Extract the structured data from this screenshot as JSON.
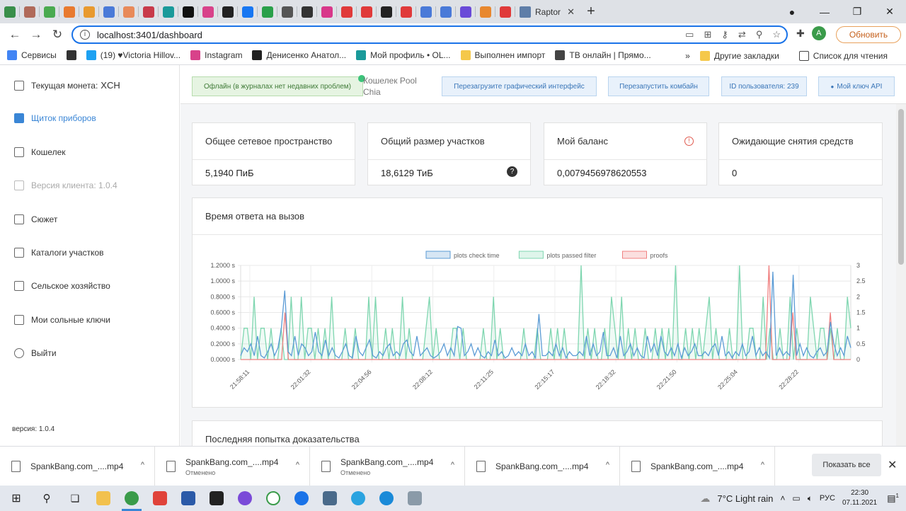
{
  "browser": {
    "tabs_favicon_colors": [
      "#3a8f4a",
      "#b06a5a",
      "#4aaa50",
      "#e87a2f",
      "#e89a2f",
      "#4a7ad8",
      "#e88a5a",
      "#c83a4a",
      "#1a9a9a",
      "#111111",
      "#d8428a",
      "#222222",
      "#1877f2",
      "#2aa04a",
      "#555555",
      "#333333",
      "#d8388a",
      "#e03a3a",
      "#e03a3a",
      "#222222",
      "#e03a3a",
      "#4a7ad8",
      "#4a7ad8",
      "#6a4ad8",
      "#e8882f",
      "#e03a3a"
    ],
    "active_tab_title": "Raptor",
    "url": "localhost:3401/dashboard",
    "update_label": "Обновить",
    "profile_initial": "А",
    "bookmarks": [
      {
        "label": "Сервисы",
        "color": "#4285f4"
      },
      {
        "label": "",
        "color": "#333333"
      },
      {
        "label": "(19) ♥Victoria Hillov...",
        "color": "#1da1f2"
      },
      {
        "label": "Instagram",
        "color": "#d8428a"
      },
      {
        "label": "Денисенко Анатол...",
        "color": "#222222"
      },
      {
        "label": "Мой профиль • OL...",
        "color": "#1a9a9a"
      },
      {
        "label": "Выполнен импорт",
        "color": "#f5c84a"
      },
      {
        "label": "ТВ онлайн | Прямо...",
        "color": "#444444"
      }
    ],
    "bookmarks_more": "»",
    "bookmarks_other": "Другие закладки",
    "reading_list": "Список для чтения"
  },
  "sidebar": {
    "items": [
      {
        "label": "Текущая монета:",
        "value": "XCH"
      },
      {
        "label": "Щиток приборов"
      },
      {
        "label": "Кошелек"
      },
      {
        "label": "Версия клиента: 1.0.4"
      },
      {
        "label": "Сюжет"
      },
      {
        "label": "Каталоги участков"
      },
      {
        "label": "Сельское хозяйство"
      },
      {
        "label": "Мои сольные ключи"
      },
      {
        "label": "Выйти"
      }
    ],
    "version": "версия: 1.0.4"
  },
  "topbar": {
    "status": "Офлайн (в журналах нет недавних проблем)",
    "pool_line1": "Кошелек Pool",
    "pool_line2": "Chia",
    "reload_gui": "Перезагрузите графический интерфейс",
    "restart_harvester": "Перезапустить комбайн",
    "user_id": "ID пользователя: 239",
    "api_key": "Мой ключ API"
  },
  "stats": [
    {
      "title": "Общее сетевое пространство",
      "value": "5,1940 ПиБ"
    },
    {
      "title": "Общий размер участков",
      "value": "18,6129 ТиБ"
    },
    {
      "title": "Мой баланс",
      "value": "0,0079456978620553"
    },
    {
      "title": "Ожидающие снятия средств",
      "value": "0"
    }
  ],
  "chart_card_title": "Время ответа на вызов",
  "next_card_title": "Последняя попытка доказательства",
  "chart_data": {
    "type": "line",
    "legend_position": "top",
    "series": [
      {
        "name": "plots check time",
        "color": "#5b9bd5",
        "axis": "left"
      },
      {
        "name": "plots passed filter",
        "color": "#7fd6b0",
        "axis": "right"
      },
      {
        "name": "proofs",
        "color": "#f08080",
        "axis": "right"
      }
    ],
    "y_left_ticks": [
      "1.2000 s",
      "1.0000 s",
      "0.8000 s",
      "0.6000 s",
      "0.4000 s",
      "0.2000 s",
      "0.0000 s"
    ],
    "y_left_range": [
      0,
      1.2
    ],
    "y_right_ticks": [
      "3",
      "2.5",
      "2",
      "1.5",
      "1",
      "0.5",
      "0"
    ],
    "y_right_range": [
      0,
      3
    ],
    "x_ticks": [
      "21:58:11",
      "22:01:32",
      "22:04:56",
      "22:08:12",
      "22:11:25",
      "22:15:17",
      "22:18:32",
      "22:21:50",
      "22:25:04",
      "22:28:22"
    ],
    "plots_check_time": [
      0.05,
      0.15,
      0.1,
      0.2,
      0.05,
      0.3,
      0.05,
      0.02,
      0.1,
      0.2,
      0.05,
      0.15,
      0.4,
      0.88,
      0.1,
      0.05,
      0.3,
      0.05,
      0.2,
      0.15,
      0.05,
      0.1,
      0.35,
      0.1,
      0.05,
      0.25,
      0.05,
      0.15,
      0.05,
      0.02,
      0.1,
      0.2,
      0.05,
      0.02,
      0.3,
      0.1,
      0.05,
      0.15,
      0.25,
      0.05,
      0.02,
      0.1,
      0.05,
      0.15,
      0.2,
      0.05,
      0.1,
      0.05,
      0.2,
      0.25,
      0.1,
      0.05,
      0.3,
      0.05,
      0.1,
      0.15,
      0.05,
      0.02,
      0.05,
      0.1,
      0.2,
      0.05,
      0.15,
      0.05,
      0.42,
      0.4,
      0.05,
      0.1,
      0.2,
      0.05,
      0.15,
      0.05,
      0.02,
      0.1,
      0.05,
      0.25,
      0.05,
      0.1,
      0.02,
      0.05,
      0.15,
      0.05,
      0.1,
      0.05,
      0.2,
      0.05,
      0.1,
      0.02,
      0.58,
      0.05,
      0.05,
      0.1,
      0.05,
      0.2,
      0.05,
      0.15,
      0.02,
      0.1,
      0.05,
      0.05,
      0.1,
      0.05,
      0.3,
      0.05,
      0.2,
      0.05,
      0.1,
      0.35,
      0.05,
      0.05,
      0.15,
      0.02,
      0.3,
      0.05,
      0.1,
      0.2,
      0.05,
      0.15,
      0.05,
      0.02,
      0.3,
      0.1,
      0.2,
      0.05,
      0.3,
      0.1,
      0.05,
      0.15,
      0.05,
      0.2,
      0.02,
      0.15,
      0.05,
      0.1,
      0.2,
      0.05,
      0.05,
      0.1,
      0.05,
      0.15,
      0.2,
      0.05,
      0.3,
      0.05,
      0.1,
      0.02,
      0.1,
      0.05,
      0.2,
      0.05,
      0.1,
      0.3,
      0.05,
      0.15,
      0.05,
      0.1,
      0.02,
      1.12,
      0.05,
      0.15,
      0.05,
      0.1,
      0.05,
      1.08,
      0.05,
      0.2,
      0.05,
      0.15,
      0.05,
      0.02,
      0.1,
      0.15,
      0.05,
      0.1,
      0.48,
      0.2,
      0.05,
      0.15,
      0.05,
      0.3,
      0.15
    ],
    "plots_passed_filter": [
      0,
      1,
      1,
      0,
      2,
      0,
      1,
      1,
      0,
      1,
      0,
      0,
      1,
      0,
      0,
      2,
      0,
      0,
      2,
      0,
      1,
      1,
      0,
      1,
      0,
      1,
      0,
      2,
      0,
      0,
      0,
      1,
      0,
      0,
      1,
      0,
      0,
      0,
      2,
      0,
      2,
      0,
      0,
      1,
      0,
      1,
      0,
      0,
      2,
      0,
      1,
      0,
      0,
      0,
      0,
      1,
      2,
      0,
      1,
      0,
      0,
      0,
      0,
      1,
      1,
      0,
      1,
      0,
      0,
      0,
      0,
      0,
      1,
      0,
      0,
      2,
      0,
      1,
      0,
      0,
      0,
      0,
      0,
      0,
      1,
      0,
      0,
      0,
      1,
      0,
      0,
      0,
      1,
      0,
      1,
      0,
      1,
      0,
      0,
      0,
      0,
      3,
      0,
      1,
      0,
      1,
      0,
      0,
      1,
      0,
      2,
      1,
      0,
      2,
      0,
      1,
      0,
      1,
      0,
      0,
      1,
      0,
      0,
      1,
      0,
      1,
      0,
      1,
      0,
      3,
      0,
      0,
      1,
      0,
      1,
      0,
      1,
      0,
      1,
      2,
      0,
      1,
      0,
      0,
      0,
      1,
      0,
      0,
      3,
      0,
      0,
      1,
      1,
      0,
      0,
      2,
      0,
      1,
      0,
      0,
      1,
      0,
      0,
      2,
      0,
      1,
      0,
      0,
      0,
      2,
      1,
      0,
      1,
      1,
      0,
      1,
      0,
      1,
      0,
      0,
      2,
      1
    ],
    "proofs": [
      0,
      0,
      0,
      0,
      0,
      0,
      0,
      0,
      0,
      0,
      0,
      0,
      0,
      1.5,
      0,
      0,
      0,
      0,
      0,
      0,
      0,
      0,
      0,
      0,
      0,
      0,
      0,
      0,
      0,
      0,
      0,
      0,
      0,
      0,
      0,
      0,
      0,
      0,
      0,
      0,
      0,
      0,
      0,
      0,
      0,
      0,
      0,
      0,
      0,
      0,
      0,
      0,
      0,
      0,
      0,
      0,
      0,
      0,
      0,
      0,
      0,
      0,
      0,
      0,
      0,
      0,
      0,
      0,
      0,
      0,
      0,
      0,
      0,
      0,
      0,
      0,
      0,
      0,
      0,
      0,
      0,
      0,
      0,
      0,
      0,
      0,
      0,
      0,
      0,
      0,
      0,
      0,
      0,
      0,
      0,
      0,
      0,
      0,
      0,
      0,
      0,
      0,
      0,
      0,
      0,
      0,
      0,
      0,
      0,
      0,
      0,
      0,
      0,
      0,
      0,
      0,
      0,
      0,
      0,
      0,
      0,
      0,
      0,
      0,
      0,
      0,
      0,
      0,
      0,
      0,
      0,
      0,
      0,
      0,
      0,
      0,
      0,
      0,
      0,
      0,
      0,
      0,
      0,
      0,
      0,
      0,
      0,
      0,
      0,
      0,
      0,
      0,
      0,
      0,
      0,
      3,
      0,
      0,
      0,
      0,
      0,
      0,
      1.5,
      0,
      0,
      0,
      0,
      0,
      0,
      0,
      0,
      0,
      0,
      1.5,
      0,
      0,
      0,
      0,
      0,
      0
    ]
  },
  "downloads": [
    {
      "name": "SpankBang.com_....mp4",
      "status": ""
    },
    {
      "name": "SpankBang.com_....mp4",
      "status": "Отменено"
    },
    {
      "name": "SpankBang.com_....mp4",
      "status": "Отменено"
    },
    {
      "name": "SpankBang.com_....mp4",
      "status": ""
    },
    {
      "name": "SpankBang.com_....mp4",
      "status": ""
    }
  ],
  "show_all": "Показать все",
  "taskbar": {
    "weather": "7°C  Light rain",
    "lang": "РУС",
    "time": "22:30",
    "date": "07.11.2021",
    "notifications": "1"
  }
}
